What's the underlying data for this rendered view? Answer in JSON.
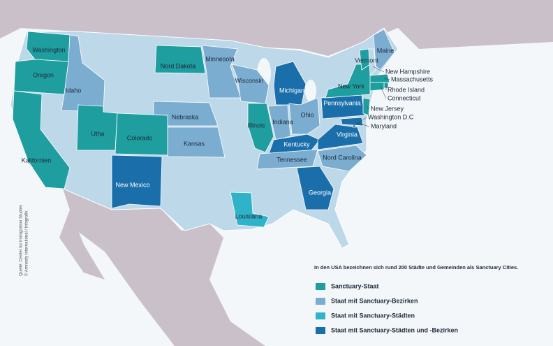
{
  "map": {
    "states": [
      {
        "name": "Washington",
        "category": 0
      },
      {
        "name": "Oregon",
        "category": 0
      },
      {
        "name": "Kalifornien",
        "category": 0
      },
      {
        "name": "Idaho",
        "category": 1
      },
      {
        "name": "Utha",
        "category": 0
      },
      {
        "name": "Colorado",
        "category": 0
      },
      {
        "name": "New Mexico",
        "category": 3
      },
      {
        "name": "Nord Dakota",
        "category": 0
      },
      {
        "name": "Nebraska",
        "category": 1
      },
      {
        "name": "Kansas",
        "category": 1
      },
      {
        "name": "Minnesota",
        "category": 1
      },
      {
        "name": "Wisconsin",
        "category": 1
      },
      {
        "name": "Illinois",
        "category": 0
      },
      {
        "name": "Michigan",
        "category": 3
      },
      {
        "name": "Indiana",
        "category": 1
      },
      {
        "name": "Ohio",
        "category": 1
      },
      {
        "name": "Kentucky",
        "category": 3
      },
      {
        "name": "Tennessee",
        "category": 1
      },
      {
        "name": "Georgia",
        "category": 3
      },
      {
        "name": "Louisiana",
        "category": 2
      },
      {
        "name": "Nord Carolina",
        "category": 1
      },
      {
        "name": "Virginia",
        "category": 3
      },
      {
        "name": "Pennsylvania",
        "category": 3
      },
      {
        "name": "New York",
        "category": 0
      },
      {
        "name": "Vermont",
        "category": 0
      },
      {
        "name": "Maine",
        "category": 1
      },
      {
        "name": "New Hampshire"
      },
      {
        "name": "Massachusetts",
        "category": 0
      },
      {
        "name": "Rhode Island",
        "category": 0
      },
      {
        "name": "Connecticut",
        "category": 0
      },
      {
        "name": "New Jersey",
        "category": 0
      },
      {
        "name": "Washington D.C",
        "category": 3
      },
      {
        "name": "Maryland",
        "category": 3
      }
    ],
    "note": "In den USA bezeichnen sich rund 200 Städte und Gemeinden als Sanctuary Cities.",
    "legend": [
      {
        "label": "Sanctuary-Staat",
        "color": "#1f9e9f"
      },
      {
        "label": "Staat mit Sanctuary-Bezirken",
        "color": "#7badd0"
      },
      {
        "label": "Staat mit Sanctuary-Städten",
        "color": "#2fb3c8"
      },
      {
        "label": "Staat mit Sanctuary-Städten und -Bezirken",
        "color": "#1a6fab"
      }
    ],
    "source": "Quelle: Center for Immigration Studies",
    "credit": "© Amnesty International / Infografik"
  }
}
